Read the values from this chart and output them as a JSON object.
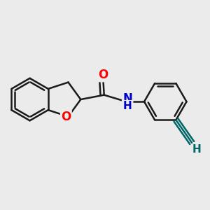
{
  "background_color": "#ebebeb",
  "bond_color": "#1a1a1a",
  "bond_width": 1.8,
  "atom_colors": {
    "O": "#ff0000",
    "N": "#0000cc",
    "C_alkyne": "#006666",
    "H_alkyne": "#006666"
  },
  "figsize": [
    3.0,
    3.0
  ],
  "dpi": 100,
  "font_size": 11
}
